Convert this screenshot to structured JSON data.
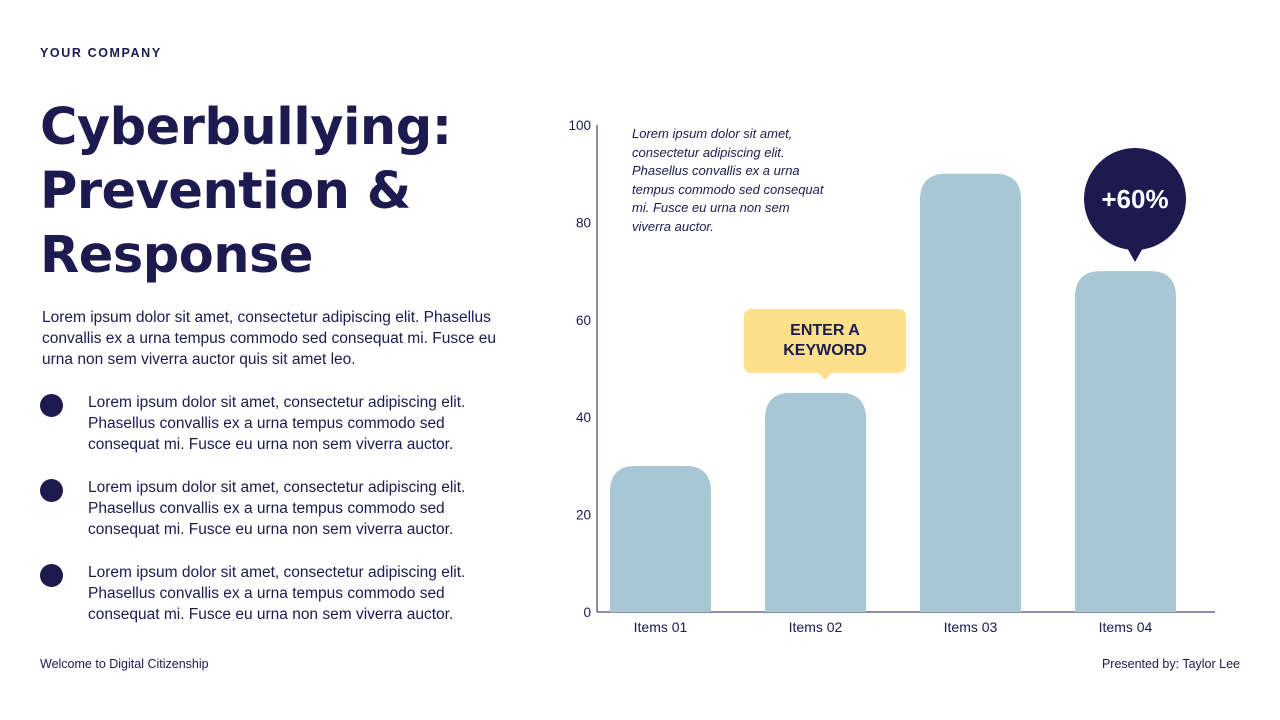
{
  "company": "YOUR COMPANY",
  "title_lines": [
    "Cyberbullying:",
    "Prevention &",
    "Response"
  ],
  "intro": "Lorem ipsum dolor sit amet, consectetur adipiscing elit. Phasellus convallis ex a urna tempus commodo sed consequat mi. Fusce eu urna non sem viverra auctor quis sit amet leo.",
  "bullets": [
    "Lorem ipsum dolor sit amet, consectetur adipiscing elit. Phasellus convallis ex a urna tempus commodo sed consequat mi. Fusce eu urna non sem viverra auctor.",
    "Lorem ipsum dolor sit amet, consectetur adipiscing elit. Phasellus convallis ex a urna tempus commodo sed consequat mi. Fusce eu urna non sem viverra auctor.",
    "Lorem ipsum dolor sit amet, consectetur adipiscing elit. Phasellus convallis ex a urna tempus commodo sed consequat mi. Fusce eu urna non sem viverra auctor."
  ],
  "footer": {
    "left": "Welcome to Digital Citizenship",
    "right": "Presented by: Taylor Lee"
  },
  "colors": {
    "navy": "#1c1a4f",
    "bar": "#a7c7d5",
    "callout": "#fce08b"
  },
  "chart_data": {
    "type": "bar",
    "categories": [
      "Items 01",
      "Items 02",
      "Items 03",
      "Items 04"
    ],
    "values": [
      30,
      45,
      90,
      70
    ],
    "ylim": [
      0,
      100
    ],
    "yticks": [
      0,
      20,
      40,
      60,
      80,
      100
    ],
    "title": "",
    "xlabel": "",
    "ylabel": "",
    "grid": false,
    "note": "Lorem ipsum dolor sit amet, consectetur adipiscing elit. Phasellus convallis ex a urna tempus commodo sed consequat mi. Fusce eu urna non sem viverra auctor.",
    "annotations": [
      {
        "category": "Items 02",
        "text": "ENTER A KEYWORD"
      },
      {
        "category": "Items 04",
        "text": "+60%"
      }
    ]
  }
}
